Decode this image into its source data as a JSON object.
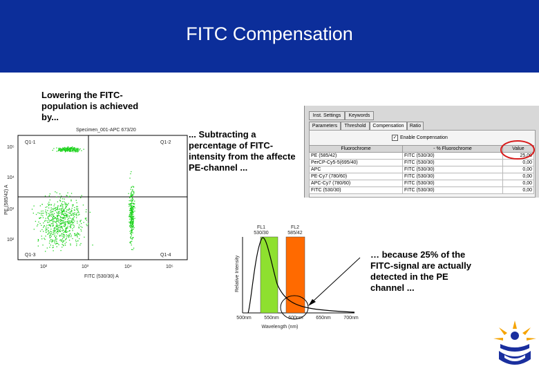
{
  "slide": {
    "title": "FITC Compensation"
  },
  "text_blocks": {
    "lowering": "Lowering the FITC-\npopulation is achieved\nby...",
    "subtracting": "... Subtracting a\npercentage of FITC-\nintensity from the affecte\nPE-channel ...",
    "because": "… because 25% of the\nFITC-signal are actually\ndetected in the PE\nchannel ..."
  },
  "dotplot": {
    "header": "Specimen_001-APC 673/20",
    "y_axis_label": "PE (585/42) A",
    "x_axis_label": "FITC (530/30) A",
    "quadrants": [
      "Q1-1",
      "Q1-2",
      "Q1-3",
      "Q1-4"
    ],
    "x_ticks": [
      "10²",
      "10³",
      "10⁴",
      "10⁵"
    ],
    "y_ticks": [
      "10²",
      "10³",
      "10⁴",
      "10⁵"
    ],
    "colors": {
      "dots": "#1fd31f",
      "axis": "#000000"
    }
  },
  "software_panel": {
    "top_tabs": [
      "Inst. Settings",
      "Keywords"
    ],
    "sub_tabs": [
      "Parameters",
      "Threshold",
      "Compensation",
      "Ratio"
    ],
    "active_sub_tab": "Compensation",
    "checkbox_label": "Enable Compensation",
    "checkbox_checked": true,
    "columns": [
      "Fluorochrome",
      "- % Fluorochrome",
      "Value"
    ],
    "rows": [
      {
        "fluoro": "PE (585/42)",
        "minus": "FITC (530/30)",
        "value": "25,00"
      },
      {
        "fluoro": "PerCP-Cy5-5(695/40)",
        "minus": "FITC (530/30)",
        "value": "0,00"
      },
      {
        "fluoro": "APC",
        "minus": "FITC (530/30)",
        "value": "0,00"
      },
      {
        "fluoro": "PE-Cy7 (780/60)",
        "minus": "FITC (530/30)",
        "value": "0,00"
      },
      {
        "fluoro": "APC-Cy7 (780/60)",
        "minus": "FITC (530/30)",
        "value": "0,00"
      },
      {
        "fluoro": "FITC (530/30)",
        "minus": "FITC (530/30)",
        "value": "0,00"
      }
    ],
    "highlight_color": "#d81b1b"
  },
  "spectrum": {
    "ylabel": "Relative Intensity",
    "xlabel": "Wavelength (nm)",
    "x_ticks": [
      "500nm",
      "550nm",
      "600nm",
      "650nm",
      "700nm"
    ],
    "filters": [
      {
        "name": "FL1",
        "band": "530/30",
        "color": "#8ee02f"
      },
      {
        "name": "FL2",
        "band": "585/42",
        "color": "#ff6a00"
      }
    ]
  }
}
